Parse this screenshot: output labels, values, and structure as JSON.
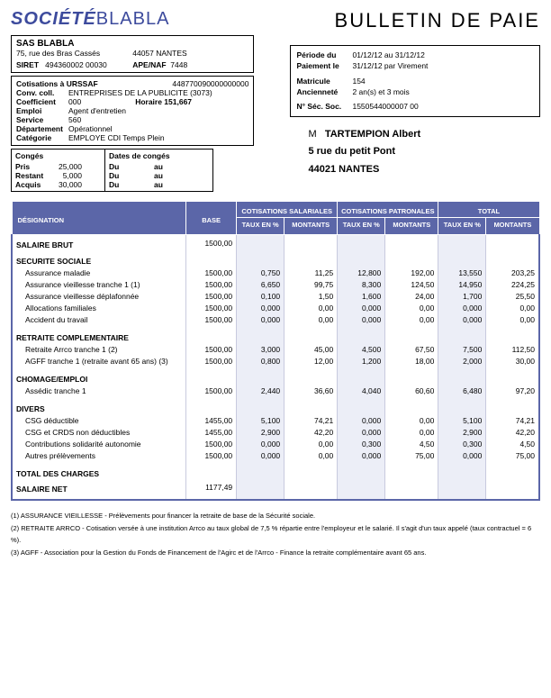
{
  "doc_title": "BULLETIN DE PAIE",
  "logo": {
    "part1": "SOCIÉTÉ",
    "part2": "BLABLA"
  },
  "company": {
    "name": "SAS BLABLA",
    "address": "75, rue des Bras Cassés",
    "city": "44057 NANTES",
    "siret_label": "SIRET",
    "siret": "494360002   00030",
    "apenaf_label": "APE/NAF",
    "apenaf": "7448"
  },
  "cotis": {
    "urssaf_label": "Cotisations à  URSSAF",
    "urssaf": "448770090000000000",
    "conv_label": "Conv. coll.",
    "conv": "ENTREPRISES DE LA PUBLICITE (3073)",
    "coeff_label": "Coefficient",
    "coeff": "000",
    "horaire_label": "Horaire 151,667",
    "emploi_label": "Emploi",
    "emploi": "Agent d'entretien",
    "service_label": "Service",
    "service": "560",
    "dept_label": "Département",
    "dept": "Opérationnel",
    "cat_label": "Catégorie",
    "cat": "EMPLOYE CDI Temps Plein"
  },
  "conges": {
    "hdr1": "Congés",
    "hdr2": "Dates de congés",
    "rows": [
      {
        "a": "Pris",
        "b": "25,000",
        "c": "Du",
        "d": "au"
      },
      {
        "a": "Restant",
        "b": "5,000",
        "c": "Du",
        "d": "au"
      },
      {
        "a": "Acquis",
        "b": "30,000",
        "c": "Du",
        "d": "au"
      }
    ]
  },
  "period": {
    "periode_label": "Période du",
    "periode": "01/12/12   au   31/12/12",
    "paiement_label": "Paiement le",
    "paiement": "31/12/12     par    Virement",
    "matricule_label": "Matricule",
    "matricule": "154",
    "anciennete_label": "Ancienneté",
    "anciennete": "2 an(s) et    3 mois",
    "nsec_label": "N° Séc. Soc.",
    "nsec": "1550544000007        00"
  },
  "employee": {
    "title": "M",
    "name": "TARTEMPION Albert",
    "address": "5 rue du petit Pont",
    "city": "44021 NANTES"
  },
  "headers": {
    "designation": "DÉSIGNATION",
    "base": "BASE",
    "cot_sal": "COTISATIONS SALARIALES",
    "cot_pat": "COTISATIONS PATRONALES",
    "total": "TOTAL",
    "taux": "TAUX EN %",
    "montants": "MONTANTS"
  },
  "lines": [
    {
      "type": "section",
      "label": "SALAIRE BRUT",
      "base": "1500,00"
    },
    {
      "type": "section",
      "label": "SECURITE SOCIALE"
    },
    {
      "type": "sub",
      "label": "Assurance maladie",
      "base": "1500,00",
      "ts": "0,750",
      "ms": "11,25",
      "tp": "12,800",
      "mp": "192,00",
      "tt": "13,550",
      "mt": "203,25"
    },
    {
      "type": "sub",
      "label": "Assurance vieillesse tranche 1 (1)",
      "base": "1500,00",
      "ts": "6,650",
      "ms": "99,75",
      "tp": "8,300",
      "mp": "124,50",
      "tt": "14,950",
      "mt": "224,25"
    },
    {
      "type": "sub",
      "label": "Assurance vieillesse déplafonnée",
      "base": "1500,00",
      "ts": "0,100",
      "ms": "1,50",
      "tp": "1,600",
      "mp": "24,00",
      "tt": "1,700",
      "mt": "25,50"
    },
    {
      "type": "sub",
      "label": "Allocations familiales",
      "base": "1500,00",
      "ts": "0,000",
      "ms": "0,00",
      "tp": "0,000",
      "mp": "0,00",
      "tt": "0,000",
      "mt": "0,00"
    },
    {
      "type": "sub end",
      "label": "Accident du travail",
      "base": "1500,00",
      "ts": "0,000",
      "ms": "0,00",
      "tp": "0,000",
      "mp": "0,00",
      "tt": "0,000",
      "mt": "0,00"
    },
    {
      "type": "section",
      "label": "RETRAITE COMPLEMENTAIRE"
    },
    {
      "type": "sub",
      "label": "Retraite Arrco tranche 1 (2)",
      "base": "1500,00",
      "ts": "3,000",
      "ms": "45,00",
      "tp": "4,500",
      "mp": "67,50",
      "tt": "7,500",
      "mt": "112,50"
    },
    {
      "type": "sub end",
      "label": "AGFF tranche 1 (retraite avant 65 ans) (3)",
      "base": "1500,00",
      "ts": "0,800",
      "ms": "12,00",
      "tp": "1,200",
      "mp": "18,00",
      "tt": "2,000",
      "mt": "30,00"
    },
    {
      "type": "section",
      "label": "CHOMAGE/EMPLOI"
    },
    {
      "type": "sub end",
      "label": "Assédic tranche 1",
      "base": "1500,00",
      "ts": "2,440",
      "ms": "36,60",
      "tp": "4,040",
      "mp": "60,60",
      "tt": "6,480",
      "mt": "97,20"
    },
    {
      "type": "section",
      "label": "DIVERS"
    },
    {
      "type": "sub",
      "label": "CSG déductible",
      "base": "1455,00",
      "ts": "5,100",
      "ms": "74,21",
      "tp": "0,000",
      "mp": "0,00",
      "tt": "5,100",
      "mt": "74,21"
    },
    {
      "type": "sub",
      "label": "CSG et CRDS non déductibles",
      "base": "1455,00",
      "ts": "2,900",
      "ms": "42,20",
      "tp": "0,000",
      "mp": "0,00",
      "tt": "2,900",
      "mt": "42,20"
    },
    {
      "type": "sub",
      "label": "Contributions solidarité autonomie",
      "base": "1500,00",
      "ts": "0,000",
      "ms": "0,00",
      "tp": "0,300",
      "mp": "4,50",
      "tt": "0,300",
      "mt": "4,50"
    },
    {
      "type": "sub end",
      "label": "Autres prélèvements",
      "base": "1500,00",
      "ts": "0,000",
      "ms": "0,00",
      "tp": "0,000",
      "mp": "75,00",
      "tt": "0,000",
      "mt": "75,00"
    },
    {
      "type": "section",
      "label": "TOTAL DES CHARGES"
    },
    {
      "type": "section bottom",
      "label": "SALAIRE NET",
      "base": "1177,49"
    }
  ],
  "footnotes": [
    "(1) ASSURANCE VIEILLESSE - Prélèvements pour financer la retraite de base de la Sécurité sociale.",
    "(2) RETRAITE ARRCO - Cotisation versée à une institution Arrco au taux global de 7,5 % répartie entre l'employeur et le salarié. Il s'agit d'un taux appelé (taux contractuel = 6 %).",
    "(3) AGFF - Association pour la Gestion du Fonds de Financement de l'Agirc et de l'Arrco - Finance la retraite complémentaire avant 65 ans."
  ]
}
